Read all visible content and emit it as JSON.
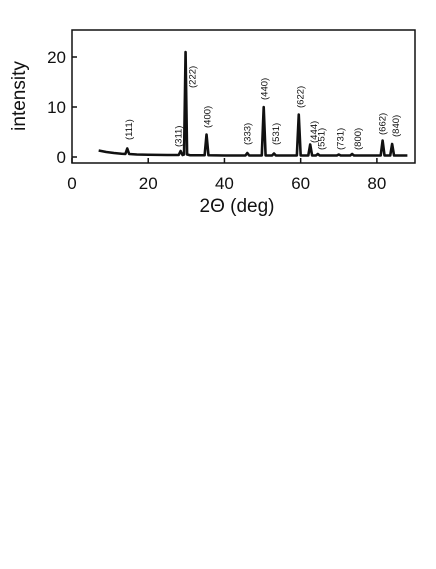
{
  "chart_data": {
    "type": "line",
    "x_label": "2Θ (deg)",
    "y_label": "intensity",
    "color": "#111111",
    "xlim": [
      0,
      90
    ],
    "ylim": [
      -1.2,
      25.4
    ],
    "xticks": [
      0,
      20,
      40,
      60,
      80
    ],
    "yticks": [
      0,
      10,
      20
    ],
    "x": [
      7,
      9,
      11,
      13,
      14,
      14.5,
      15,
      17,
      20,
      25,
      28,
      28.5,
      29,
      29.4,
      29.8,
      30.2,
      31,
      34.8,
      35.3,
      35.8,
      40,
      45.5,
      46,
      46.5,
      49.8,
      50.3,
      50.8,
      52.5,
      53,
      53.5,
      57,
      59,
      59.5,
      60,
      62,
      62.5,
      63,
      64,
      64.5,
      65,
      69.5,
      70,
      70.5,
      73,
      73.5,
      74,
      78,
      81,
      81.5,
      82,
      83.5,
      84,
      84.5,
      86,
      88
    ],
    "values": [
      1.3,
      1.0,
      0.8,
      0.65,
      0.6,
      1.7,
      0.6,
      0.5,
      0.45,
      0.4,
      0.4,
      1.2,
      0.4,
      0.5,
      21,
      0.5,
      0.35,
      0.35,
      4.5,
      0.35,
      0.3,
      0.3,
      0.8,
      0.3,
      0.3,
      10,
      0.3,
      0.3,
      0.7,
      0.3,
      0.3,
      0.3,
      8.5,
      0.3,
      0.3,
      2.5,
      0.3,
      0.3,
      0.6,
      0.3,
      0.3,
      0.5,
      0.3,
      0.3,
      0.6,
      0.3,
      0.3,
      0.3,
      3.3,
      0.3,
      0.3,
      2.6,
      0.3,
      0.3,
      0.3
    ],
    "annotations": [
      {
        "text": "(111)",
        "x": 15,
        "y": 3.4
      },
      {
        "text": "(311)",
        "x": 28,
        "y": 2
      },
      {
        "text": "(222)",
        "x": 31.6,
        "y": 13.8
      },
      {
        "text": "(400)",
        "x": 35.5,
        "y": 5.8
      },
      {
        "text": "(333)",
        "x": 46,
        "y": 2.4
      },
      {
        "text": "(440)",
        "x": 50.5,
        "y": 11.4
      },
      {
        "text": "(531)",
        "x": 53.5,
        "y": 2.4
      },
      {
        "text": "(622)",
        "x": 60,
        "y": 9.8
      },
      {
        "text": "(444)",
        "x": 63.5,
        "y": 2.8
      },
      {
        "text": "(551)",
        "x": 65.5,
        "y": 1.4
      },
      {
        "text": "(731)",
        "x": 70.5,
        "y": 1.4
      },
      {
        "text": "(800)",
        "x": 75,
        "y": 1.4
      },
      {
        "text": "(662)",
        "x": 81.5,
        "y": 4.4
      },
      {
        "text": "(840)",
        "x": 85,
        "y": 4
      }
    ]
  }
}
